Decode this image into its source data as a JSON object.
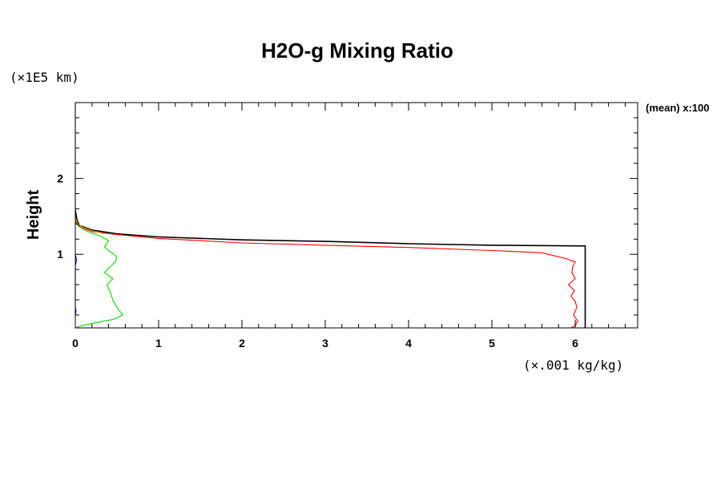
{
  "chart_data": {
    "type": "line",
    "title": "H2O-g Mixing Ratio",
    "ylabel": "Height",
    "xlabel": "",
    "x_unit": "(×.001 kg/kg)",
    "y_unit": "(×1E5 km)",
    "side_note": "(mean) x:100",
    "xlim": [
      0,
      6.75
    ],
    "ylim": [
      0.03,
      3.0
    ],
    "x_ticks": [
      "0",
      "1",
      "2",
      "3",
      "4",
      "5",
      "6"
    ],
    "x_tick_values": [
      0,
      1,
      2,
      3,
      4,
      5,
      6
    ],
    "y_ticks": [
      "1",
      "2"
    ],
    "y_tick_values": [
      1,
      2
    ],
    "grid": false,
    "series": [
      {
        "color": "#000000",
        "points": [
          [
            6.12,
            0.03
          ],
          [
            6.12,
            1.11
          ],
          [
            5.0,
            1.12
          ],
          [
            4.0,
            1.14
          ],
          [
            3.0,
            1.17
          ],
          [
            2.0,
            1.19
          ],
          [
            1.0,
            1.23
          ],
          [
            0.5,
            1.27
          ],
          [
            0.2,
            1.32
          ],
          [
            0.05,
            1.38
          ],
          [
            0.02,
            1.45
          ],
          [
            0.01,
            1.52
          ],
          [
            0.0,
            1.58
          ]
        ]
      },
      {
        "color": "#ff0000",
        "points": [
          [
            5.95,
            0.03
          ],
          [
            6.0,
            0.06
          ],
          [
            6.03,
            0.12
          ],
          [
            5.98,
            0.2
          ],
          [
            6.02,
            0.3
          ],
          [
            6.0,
            0.38
          ],
          [
            5.95,
            0.45
          ],
          [
            5.99,
            0.52
          ],
          [
            5.92,
            0.6
          ],
          [
            6.0,
            0.68
          ],
          [
            5.96,
            0.76
          ],
          [
            5.97,
            0.84
          ],
          [
            6.0,
            0.9
          ],
          [
            5.9,
            0.94
          ],
          [
            5.6,
            1.02
          ],
          [
            5.0,
            1.05
          ],
          [
            4.0,
            1.09
          ],
          [
            3.0,
            1.12
          ],
          [
            2.0,
            1.15
          ],
          [
            1.0,
            1.21
          ],
          [
            0.5,
            1.26
          ],
          [
            0.2,
            1.3
          ],
          [
            0.05,
            1.36
          ],
          [
            0.0,
            1.44
          ]
        ]
      },
      {
        "color": "#00dd00",
        "points": [
          [
            0.0,
            0.03
          ],
          [
            0.08,
            0.06
          ],
          [
            0.25,
            0.1
          ],
          [
            0.45,
            0.14
          ],
          [
            0.57,
            0.2
          ],
          [
            0.5,
            0.3
          ],
          [
            0.45,
            0.4
          ],
          [
            0.42,
            0.5
          ],
          [
            0.38,
            0.6
          ],
          [
            0.45,
            0.68
          ],
          [
            0.35,
            0.76
          ],
          [
            0.42,
            0.84
          ],
          [
            0.48,
            0.9
          ],
          [
            0.5,
            0.97
          ],
          [
            0.4,
            1.05
          ],
          [
            0.35,
            1.1
          ],
          [
            0.4,
            1.18
          ],
          [
            0.3,
            1.24
          ],
          [
            0.15,
            1.3
          ],
          [
            0.05,
            1.36
          ],
          [
            0.0,
            1.42
          ]
        ]
      },
      {
        "color": "#e6a000",
        "points": [
          [
            0.35,
            1.27
          ],
          [
            0.2,
            1.31
          ],
          [
            0.08,
            1.36
          ],
          [
            0.02,
            1.42
          ],
          [
            0.0,
            1.48
          ]
        ]
      },
      {
        "color": "#0000ff",
        "points": [
          [
            0.0,
            0.2
          ],
          [
            0.01,
            0.25
          ],
          [
            0.0,
            0.3
          ],
          [
            0.0,
            0.85
          ],
          [
            0.015,
            0.92
          ],
          [
            0.0,
            1.0
          ]
        ]
      },
      {
        "color": "#cc00cc",
        "points": [
          [
            0.0,
            1.6
          ],
          [
            0.0,
            3.0
          ]
        ]
      }
    ]
  }
}
